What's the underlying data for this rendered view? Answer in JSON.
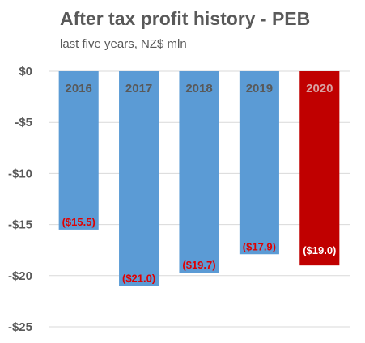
{
  "chart_data": {
    "type": "bar",
    "title": "After tax profit history - PEB",
    "subtitle": "last five years, NZ$ mln",
    "categories": [
      "2016",
      "2017",
      "2018",
      "2019",
      "2020"
    ],
    "values": [
      -15.5,
      -21.0,
      -19.7,
      -17.9,
      -19.0
    ],
    "data_labels": [
      "($15.5)",
      "($21.0)",
      "($19.7)",
      "($17.9)",
      "($19.0)"
    ],
    "y_tick_labels": [
      "$0",
      "-$5",
      "-$10",
      "-$15",
      "-$20",
      "-$25"
    ],
    "y_ticks": [
      0,
      -5,
      -10,
      -15,
      -20,
      -25
    ],
    "ylim": [
      -25,
      0
    ],
    "xlabel": "",
    "ylabel": "",
    "grid": true,
    "legend": "none",
    "colors": {
      "bar": "#5b9bd5",
      "highlight_bar": "#c00000",
      "category_label": "#595959",
      "highlight_category_label": "#d9a0a0",
      "data_label": "#e00000",
      "highlight_data_label": "#ffffff",
      "grid": "#d9d9d9"
    }
  }
}
